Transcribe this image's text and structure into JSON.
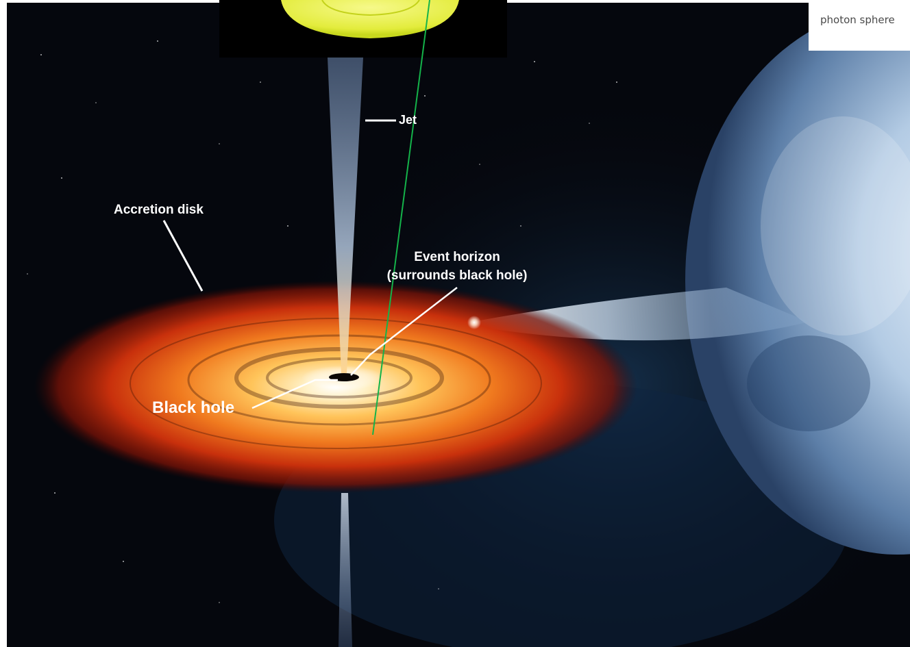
{
  "labels": {
    "jet": "Jet",
    "accretion_disk": "Accretion disk",
    "event_horizon_line1": "Event horizon",
    "event_horizon_line2": "(surrounds black hole)",
    "black_hole": "Black hole",
    "photon_sphere": "photon sphere"
  },
  "colors": {
    "space": "#05070d",
    "disk_outer": "#b8230a",
    "disk_mid": "#e8641a",
    "disk_inner": "#ffd07a",
    "jet": "#9fb6d8",
    "star": "#c9dcef",
    "pointer_line": "#14b34a",
    "inset_yellow": "#ecf25a"
  }
}
